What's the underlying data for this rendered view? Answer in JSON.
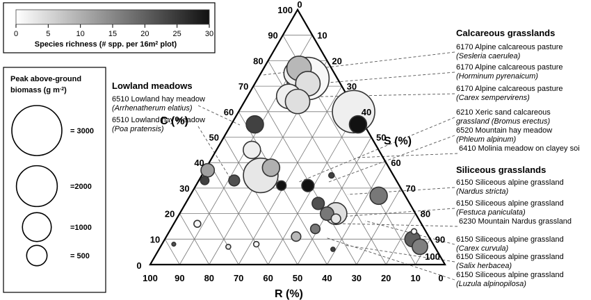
{
  "colors": {
    "ink": "#000000",
    "grid": "#777777",
    "bubble_stroke": "#333333"
  },
  "chart_data": {
    "type": "ternary-bubble",
    "axes": {
      "C": {
        "label": "C (%)",
        "ticks": [
          "10",
          "20",
          "30",
          "40",
          "50",
          "60",
          "70",
          "80",
          "90",
          "100"
        ]
      },
      "S": {
        "label": "S (%)",
        "ticks": [
          "0",
          "10",
          "20",
          "30",
          "40",
          "50",
          "60",
          "70",
          "80",
          "90",
          "100"
        ]
      },
      "R": {
        "label": "R (%)",
        "ticks": [
          "100",
          "90",
          "80",
          "70",
          "60",
          "50",
          "40",
          "30",
          "20",
          "10",
          "0"
        ]
      },
      "apex_labels": {
        "top_c": "100",
        "top_s": "0",
        "bottom_left": "0",
        "bottom_right_s": "100",
        "bottom_right_r": "0"
      }
    },
    "color_legend": {
      "title": "Species richness (# spp. per 16m",
      "title_sup": "2",
      "title_end": " plot)",
      "ticks": [
        "0",
        "5",
        "10",
        "15",
        "20",
        "25",
        "30"
      ],
      "range": [
        0,
        30
      ]
    },
    "size_legend": {
      "title_line1": "Peak above-ground",
      "title_line2": "biomass (g m",
      "title_sup": "-2",
      "title_end": ")",
      "entries": [
        {
          "label": "= 3000",
          "value": 3000
        },
        {
          "label": "=2000",
          "value": 2000
        },
        {
          "label": "=1000",
          "value": 1000
        },
        {
          "label": "= 500",
          "value": 500
        }
      ]
    },
    "groups": {
      "lowland": {
        "title": "Lowland meadows"
      },
      "calcareous": {
        "title": "Calcareous grasslands"
      },
      "siliceous": {
        "title": "Siliceous grasslands"
      }
    },
    "annotations": [
      {
        "group": "lowland",
        "side": "left",
        "line1": "6510 Lowland hay meadow",
        "line2": "(Arrhenatherum elatius)"
      },
      {
        "group": "lowland",
        "side": "left",
        "line1": "6510 Lowland hay meadow",
        "line2": "(Poa pratensis)"
      },
      {
        "group": "calcareous",
        "side": "right",
        "line1": "6170 Alpine calcareous pasture",
        "line2": "(Sesleria caerulea)"
      },
      {
        "group": "calcareous",
        "side": "right",
        "line1": "6170 Alpine calcareous pasture",
        "line2": "(Horminum pyrenaicum)"
      },
      {
        "group": "calcareous",
        "side": "right",
        "line1": "6170 Alpine calcareous pasture",
        "line2": "(Carex sempervirens)"
      },
      {
        "group": "calcareous",
        "side": "right",
        "line1": "6210 Xeric sand calcareous",
        "line2": "grassland (Bromus erectus)"
      },
      {
        "group": "calcareous",
        "side": "right",
        "line1": "6520 Mountain hay meadow",
        "line2": "(Phleum alpinum)"
      },
      {
        "group": "calcareous",
        "side": "right",
        "line1": "6410 Molinia meadow on clayey soi",
        "line2": ""
      },
      {
        "group": "siliceous",
        "side": "right",
        "line1": "6150 Siliceous alpine grassland",
        "line2": "(Nardus stricta)"
      },
      {
        "group": "siliceous",
        "side": "right",
        "line1": "6150 Siliceous alpine grassland",
        "line2": "(Festuca paniculata)"
      },
      {
        "group": "siliceous",
        "side": "right",
        "line1": "6230 Mountain Nardus grassland",
        "line2": ""
      },
      {
        "group": "siliceous",
        "side": "right",
        "line1": "6150 Siliceous alpine grassland",
        "line2": "(Carex curvula)"
      },
      {
        "group": "siliceous",
        "side": "right",
        "line1": "6150 Siliceous alpine grassland",
        "line2": "(Salix herbacea)"
      },
      {
        "group": "siliceous",
        "side": "right",
        "line1": "6150 Siliceous alpine grassland",
        "line2": "(Luzula alpinopilosa)"
      }
    ],
    "points": [
      {
        "C": 60,
        "S": 39,
        "R": 1,
        "biomass": 3000,
        "richness": 2
      },
      {
        "C": 73,
        "S": 17,
        "R": 10,
        "biomass": 3000,
        "richness": 1
      },
      {
        "C": 75,
        "S": 12,
        "R": 13,
        "biomass": 1000,
        "richness": 2
      },
      {
        "C": 77,
        "S": 12,
        "R": 11,
        "biomass": 1000,
        "richness": 9
      },
      {
        "C": 71,
        "S": 18,
        "R": 11,
        "biomass": 1000,
        "richness": 4
      },
      {
        "C": 66,
        "S": 14,
        "R": 20,
        "biomass": 1000,
        "richness": 2
      },
      {
        "C": 64,
        "S": 18,
        "R": 18,
        "biomass": 1000,
        "richness": 4
      },
      {
        "C": 55,
        "S": 8,
        "R": 37,
        "biomass": 500,
        "richness": 24
      },
      {
        "C": 55,
        "S": 43,
        "R": 2,
        "biomass": 500,
        "richness": 30
      },
      {
        "C": 45,
        "S": 12,
        "R": 43,
        "biomass": 500,
        "richness": 2
      },
      {
        "C": 35,
        "S": 20,
        "R": 45,
        "biomass": 2000,
        "richness": 3
      },
      {
        "C": 38,
        "S": 22,
        "R": 40,
        "biomass": 500,
        "richness": 10
      },
      {
        "C": 37,
        "S": 1,
        "R": 62,
        "biomass": 300,
        "richness": 12
      },
      {
        "C": 31,
        "S": 29,
        "R": 40,
        "biomass": 150,
        "richness": 30
      },
      {
        "C": 31,
        "S": 38,
        "R": 31,
        "biomass": 250,
        "richness": 30
      },
      {
        "C": 33,
        "S": 12,
        "R": 55,
        "biomass": 200,
        "richness": 22
      },
      {
        "C": 33,
        "S": 2,
        "R": 65,
        "biomass": 120,
        "richness": 24
      },
      {
        "C": 35,
        "S": 44,
        "R": 21,
        "biomass": 50,
        "richness": 24
      },
      {
        "C": 24,
        "S": 45,
        "R": 31,
        "biomass": 250,
        "richness": 22
      },
      {
        "C": 27,
        "S": 64,
        "R": 9,
        "biomass": 500,
        "richness": 17
      },
      {
        "C": 20,
        "S": 50,
        "R": 30,
        "biomass": 300,
        "richness": 17
      },
      {
        "C": 20,
        "S": 53,
        "R": 27,
        "biomass": 800,
        "richness": 4
      },
      {
        "C": 18,
        "S": 54,
        "R": 28,
        "biomass": 150,
        "richness": 3
      },
      {
        "C": 14,
        "S": 49,
        "R": 37,
        "biomass": 150,
        "richness": 17
      },
      {
        "C": 11,
        "S": 44,
        "R": 45,
        "biomass": 150,
        "richness": 9
      },
      {
        "C": 16,
        "S": 8,
        "R": 76,
        "biomass": 80,
        "richness": 1
      },
      {
        "C": 13,
        "S": 83,
        "R": 4,
        "biomass": 50,
        "richness": 1
      },
      {
        "C": 10,
        "S": 84,
        "R": 6,
        "biomass": 400,
        "richness": 20
      },
      {
        "C": 7,
        "S": 88,
        "R": 5,
        "biomass": 400,
        "richness": 16
      },
      {
        "C": 6,
        "S": 59,
        "R": 35,
        "biomass": 30,
        "richness": 24
      },
      {
        "C": 8,
        "S": 32,
        "R": 60,
        "biomass": 50,
        "richness": 1
      },
      {
        "C": 8,
        "S": 4,
        "R": 88,
        "biomass": 25,
        "richness": 22
      },
      {
        "C": 7,
        "S": 23,
        "R": 70,
        "biomass": 40,
        "richness": 3
      }
    ]
  }
}
